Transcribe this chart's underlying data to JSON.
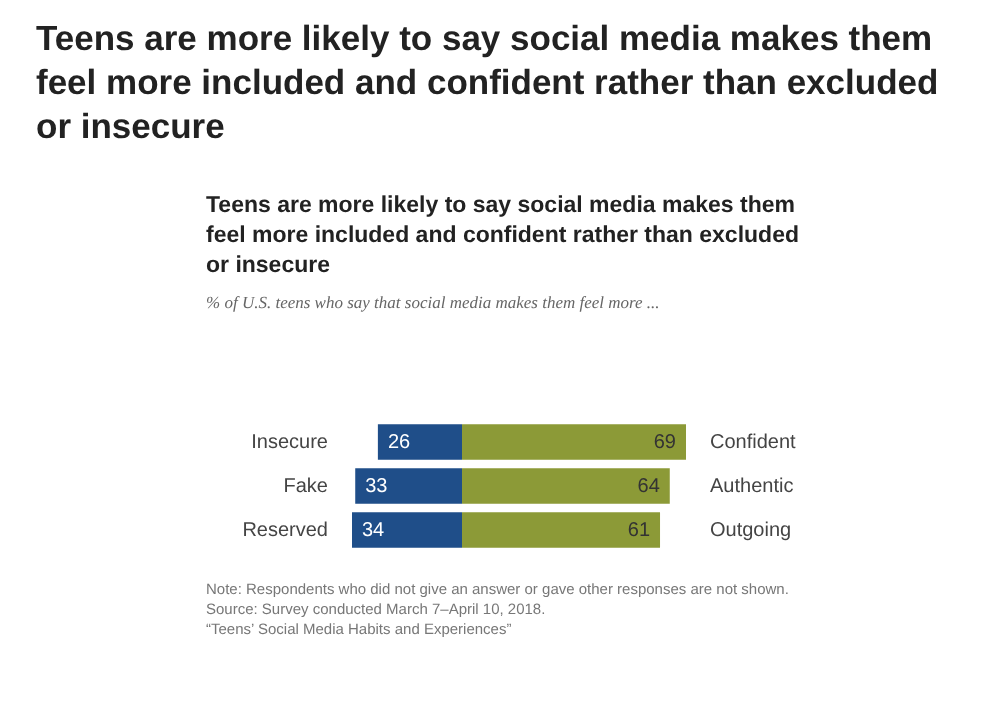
{
  "chart_data": [
    {
      "type": "bar",
      "orientation": "horizontal",
      "title": "Teens are more likely to say social media makes them feel more included and confident rather than excluded or insecure",
      "subtitle": "Teens are more likely to say social media makes them feel more included and confident rather than excluded or insecure",
      "categories": [
        "Insecure",
        "Fake",
        "Reserved"
      ],
      "series": [
        {
          "color": "#1f4e89",
          "values": [
            26,
            33,
            34
          ]
        }
      ],
      "xlim": [
        34,
        0
      ],
      "tick_labels": "y",
      "data_labels": true,
      "annotations": [
        "% of U.S. teens who say that social media makes them feel more ...",
        "Note: Respondents who did not give an answer or gave other responses are not shown.",
        "Source: Survey conducted March 7–April 10, 2018.",
        "“Teens’ Social Media Habits and Experiences”"
      ]
    },
    {
      "type": "bar",
      "orientation": "horizontal",
      "categories": [
        "Confident",
        "Authentic",
        "Outgoing"
      ],
      "series": [
        {
          "color": "#8c9a37",
          "values": [
            69,
            64,
            61
          ]
        }
      ],
      "xlim": [
        0,
        69
      ],
      "tick_labels": "y",
      "data_labels": true
    }
  ]
}
